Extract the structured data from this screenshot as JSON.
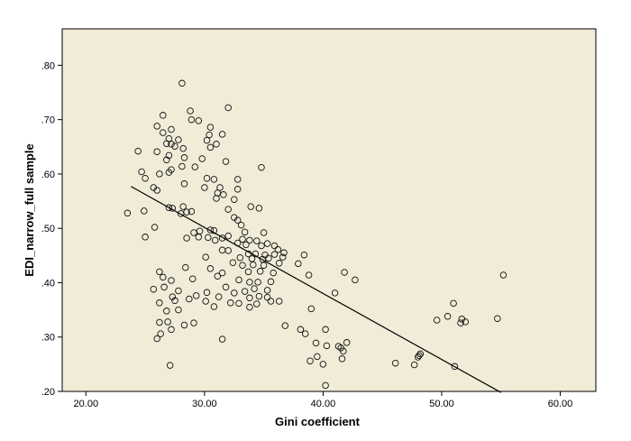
{
  "chart_data": {
    "type": "scatter",
    "title": "",
    "xlabel": "Gini coefficient",
    "ylabel": "EDI_narrow_full sample",
    "xlim": [
      18,
      63
    ],
    "ylim": [
      0.2,
      0.867
    ],
    "x_ticks": [
      20,
      30,
      40,
      50,
      60
    ],
    "x_tick_labels": [
      "20.00",
      "30.00",
      "40.00",
      "50.00",
      "60.00"
    ],
    "y_ticks": [
      0.2,
      0.3,
      0.4,
      0.5,
      0.6,
      0.7,
      0.8
    ],
    "y_tick_labels": [
      ".20",
      ".30",
      ".40",
      ".50",
      ".60",
      ".70",
      ".80"
    ],
    "grid": false,
    "background": "#f0ecd8",
    "marker": "open-circle",
    "fit_line": {
      "x": [
        23.8,
        55.0
      ],
      "y": [
        0.577,
        0.198
      ]
    },
    "points": [
      [
        28.1,
        0.767
      ],
      [
        32.0,
        0.722
      ],
      [
        28.8,
        0.716
      ],
      [
        26.5,
        0.708
      ],
      [
        28.9,
        0.7
      ],
      [
        29.5,
        0.698
      ],
      [
        26.0,
        0.688
      ],
      [
        30.5,
        0.686
      ],
      [
        27.2,
        0.682
      ],
      [
        26.5,
        0.676
      ],
      [
        30.4,
        0.672
      ],
      [
        31.5,
        0.673
      ],
      [
        27.0,
        0.665
      ],
      [
        27.8,
        0.663
      ],
      [
        27.2,
        0.655
      ],
      [
        26.8,
        0.656
      ],
      [
        30.2,
        0.662
      ],
      [
        31.0,
        0.655
      ],
      [
        30.5,
        0.649
      ],
      [
        28.2,
        0.647
      ],
      [
        27.5,
        0.651
      ],
      [
        26.0,
        0.641
      ],
      [
        27.0,
        0.634
      ],
      [
        28.3,
        0.63
      ],
      [
        29.8,
        0.628
      ],
      [
        31.8,
        0.623
      ],
      [
        24.4,
        0.642
      ],
      [
        26.8,
        0.626
      ],
      [
        28.1,
        0.614
      ],
      [
        27.2,
        0.608
      ],
      [
        29.2,
        0.613
      ],
      [
        24.7,
        0.604
      ],
      [
        27.0,
        0.603
      ],
      [
        34.8,
        0.612
      ],
      [
        25.0,
        0.592
      ],
      [
        30.2,
        0.592
      ],
      [
        30.8,
        0.59
      ],
      [
        32.8,
        0.59
      ],
      [
        26.2,
        0.6
      ],
      [
        28.3,
        0.582
      ],
      [
        30.0,
        0.575
      ],
      [
        31.3,
        0.575
      ],
      [
        32.8,
        0.572
      ],
      [
        25.7,
        0.575
      ],
      [
        26.0,
        0.57
      ],
      [
        31.1,
        0.565
      ],
      [
        31.0,
        0.555
      ],
      [
        31.6,
        0.562
      ],
      [
        32.5,
        0.553
      ],
      [
        34.6,
        0.537
      ],
      [
        28.2,
        0.54
      ],
      [
        27.3,
        0.537
      ],
      [
        32.0,
        0.535
      ],
      [
        28.9,
        0.531
      ],
      [
        28.5,
        0.53
      ],
      [
        24.9,
        0.532
      ],
      [
        27.0,
        0.538
      ],
      [
        33.9,
        0.54
      ],
      [
        28.0,
        0.527
      ],
      [
        32.5,
        0.52
      ],
      [
        32.8,
        0.515
      ],
      [
        23.5,
        0.528
      ],
      [
        33.1,
        0.506
      ],
      [
        25.8,
        0.502
      ],
      [
        29.6,
        0.495
      ],
      [
        30.5,
        0.497
      ],
      [
        30.8,
        0.496
      ],
      [
        29.1,
        0.492
      ],
      [
        33.4,
        0.493
      ],
      [
        35.0,
        0.492
      ],
      [
        25.0,
        0.484
      ],
      [
        28.5,
        0.482
      ],
      [
        29.5,
        0.484
      ],
      [
        30.3,
        0.483
      ],
      [
        30.9,
        0.478
      ],
      [
        31.5,
        0.482
      ],
      [
        32.0,
        0.486
      ],
      [
        33.2,
        0.48
      ],
      [
        33.8,
        0.478
      ],
      [
        34.4,
        0.477
      ],
      [
        32.8,
        0.473
      ],
      [
        33.5,
        0.47
      ],
      [
        34.8,
        0.468
      ],
      [
        35.3,
        0.472
      ],
      [
        35.9,
        0.468
      ],
      [
        36.2,
        0.461
      ],
      [
        31.5,
        0.46
      ],
      [
        32.0,
        0.459
      ],
      [
        33.7,
        0.453
      ],
      [
        34.3,
        0.453
      ],
      [
        35.1,
        0.451
      ],
      [
        35.9,
        0.452
      ],
      [
        36.7,
        0.455
      ],
      [
        38.4,
        0.451
      ],
      [
        30.1,
        0.447
      ],
      [
        33.0,
        0.446
      ],
      [
        34.0,
        0.444
      ],
      [
        34.9,
        0.443
      ],
      [
        35.4,
        0.445
      ],
      [
        36.6,
        0.447
      ],
      [
        32.4,
        0.437
      ],
      [
        33.2,
        0.432
      ],
      [
        34.1,
        0.433
      ],
      [
        35.0,
        0.432
      ],
      [
        36.3,
        0.436
      ],
      [
        37.9,
        0.435
      ],
      [
        28.4,
        0.428
      ],
      [
        26.2,
        0.42
      ],
      [
        30.5,
        0.426
      ],
      [
        31.5,
        0.418
      ],
      [
        33.7,
        0.42
      ],
      [
        34.7,
        0.421
      ],
      [
        35.8,
        0.418
      ],
      [
        38.8,
        0.414
      ],
      [
        41.8,
        0.419
      ],
      [
        26.5,
        0.41
      ],
      [
        27.2,
        0.404
      ],
      [
        29.0,
        0.407
      ],
      [
        31.1,
        0.412
      ],
      [
        32.9,
        0.405
      ],
      [
        33.8,
        0.401
      ],
      [
        34.5,
        0.401
      ],
      [
        35.6,
        0.402
      ],
      [
        42.7,
        0.405
      ],
      [
        55.2,
        0.414
      ],
      [
        25.7,
        0.388
      ],
      [
        26.6,
        0.392
      ],
      [
        27.8,
        0.385
      ],
      [
        30.2,
        0.382
      ],
      [
        31.8,
        0.392
      ],
      [
        32.5,
        0.381
      ],
      [
        33.4,
        0.384
      ],
      [
        34.2,
        0.389
      ],
      [
        35.3,
        0.386
      ],
      [
        27.3,
        0.374
      ],
      [
        29.3,
        0.376
      ],
      [
        30.1,
        0.366
      ],
      [
        31.2,
        0.374
      ],
      [
        32.2,
        0.363
      ],
      [
        33.8,
        0.372
      ],
      [
        34.6,
        0.375
      ],
      [
        35.3,
        0.373
      ],
      [
        36.3,
        0.366
      ],
      [
        41.0,
        0.381
      ],
      [
        26.2,
        0.363
      ],
      [
        27.5,
        0.367
      ],
      [
        28.7,
        0.37
      ],
      [
        30.8,
        0.356
      ],
      [
        32.9,
        0.362
      ],
      [
        33.8,
        0.355
      ],
      [
        34.4,
        0.361
      ],
      [
        35.6,
        0.366
      ],
      [
        51.0,
        0.362
      ],
      [
        26.8,
        0.348
      ],
      [
        27.8,
        0.35
      ],
      [
        39.0,
        0.352
      ],
      [
        50.5,
        0.338
      ],
      [
        49.6,
        0.331
      ],
      [
        51.7,
        0.333
      ],
      [
        52.0,
        0.328
      ],
      [
        51.6,
        0.326
      ],
      [
        54.7,
        0.334
      ],
      [
        26.2,
        0.327
      ],
      [
        26.9,
        0.328
      ],
      [
        28.3,
        0.322
      ],
      [
        36.8,
        0.321
      ],
      [
        26.3,
        0.306
      ],
      [
        27.2,
        0.314
      ],
      [
        26.0,
        0.297
      ],
      [
        29.1,
        0.326
      ],
      [
        31.5,
        0.296
      ],
      [
        38.1,
        0.314
      ],
      [
        40.2,
        0.314
      ],
      [
        38.5,
        0.306
      ],
      [
        39.4,
        0.289
      ],
      [
        40.3,
        0.284
      ],
      [
        41.3,
        0.283
      ],
      [
        42.0,
        0.29
      ],
      [
        41.5,
        0.28
      ],
      [
        41.7,
        0.274
      ],
      [
        39.5,
        0.264
      ],
      [
        38.9,
        0.256
      ],
      [
        41.6,
        0.26
      ],
      [
        48.2,
        0.269
      ],
      [
        48.1,
        0.266
      ],
      [
        48.0,
        0.263
      ],
      [
        46.1,
        0.252
      ],
      [
        47.7,
        0.249
      ],
      [
        40.0,
        0.25
      ],
      [
        51.1,
        0.246
      ],
      [
        27.1,
        0.248
      ],
      [
        40.2,
        0.211
      ]
    ]
  }
}
